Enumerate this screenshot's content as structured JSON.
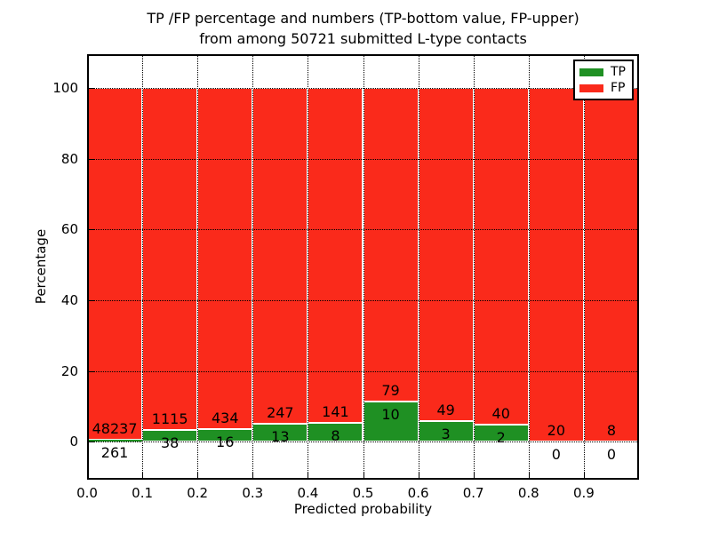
{
  "chart_data": {
    "type": "bar",
    "stacked": true,
    "title": [
      "TP /FP percentage and numbers (TP-bottom value, FP-upper)",
      "from among 50721 submitted L-type contacts"
    ],
    "xlabel": "Predicted probability",
    "ylabel": "Percentage",
    "xlim": [
      0,
      1.0
    ],
    "ylim": [
      -10.8,
      109.6
    ],
    "x_tick_values": [
      0.0,
      0.1,
      0.2,
      0.3,
      0.4,
      0.5,
      0.6,
      0.7,
      0.8,
      0.9
    ],
    "x_tick_labels": [
      "0.0",
      "0.1",
      "0.2",
      "0.3",
      "0.4",
      "0.5",
      "0.6",
      "0.7",
      "0.8",
      "0.9"
    ],
    "y_ticks": [
      0,
      20,
      40,
      60,
      80,
      100
    ],
    "y_tick_labels": [
      "0",
      "20",
      "40",
      "60",
      "80",
      "100"
    ],
    "grid": {
      "style": "dotted",
      "color": "#000000"
    },
    "series": [
      {
        "name": "TP",
        "color": "#1f9023"
      },
      {
        "name": "FP",
        "color": "#fa2a1b"
      }
    ],
    "legend": {
      "position": "upper right",
      "entries": [
        "TP",
        "FP"
      ]
    },
    "bins": [
      {
        "range": [
          0.0,
          0.1
        ],
        "tp": 261,
        "fp": 48237
      },
      {
        "range": [
          0.1,
          0.2
        ],
        "tp": 38,
        "fp": 1115
      },
      {
        "range": [
          0.2,
          0.3
        ],
        "tp": 16,
        "fp": 434
      },
      {
        "range": [
          0.3,
          0.4
        ],
        "tp": 13,
        "fp": 247
      },
      {
        "range": [
          0.4,
          0.5
        ],
        "tp": 8,
        "fp": 141
      },
      {
        "range": [
          0.5,
          0.6
        ],
        "tp": 10,
        "fp": 79
      },
      {
        "range": [
          0.6,
          0.7
        ],
        "tp": 3,
        "fp": 49
      },
      {
        "range": [
          0.7,
          0.8
        ],
        "tp": 2,
        "fp": 40
      },
      {
        "range": [
          0.8,
          0.9
        ],
        "tp": 0,
        "fp": 20
      },
      {
        "range": [
          0.9,
          1.0
        ],
        "tp": 0,
        "fp": 8
      }
    ]
  }
}
